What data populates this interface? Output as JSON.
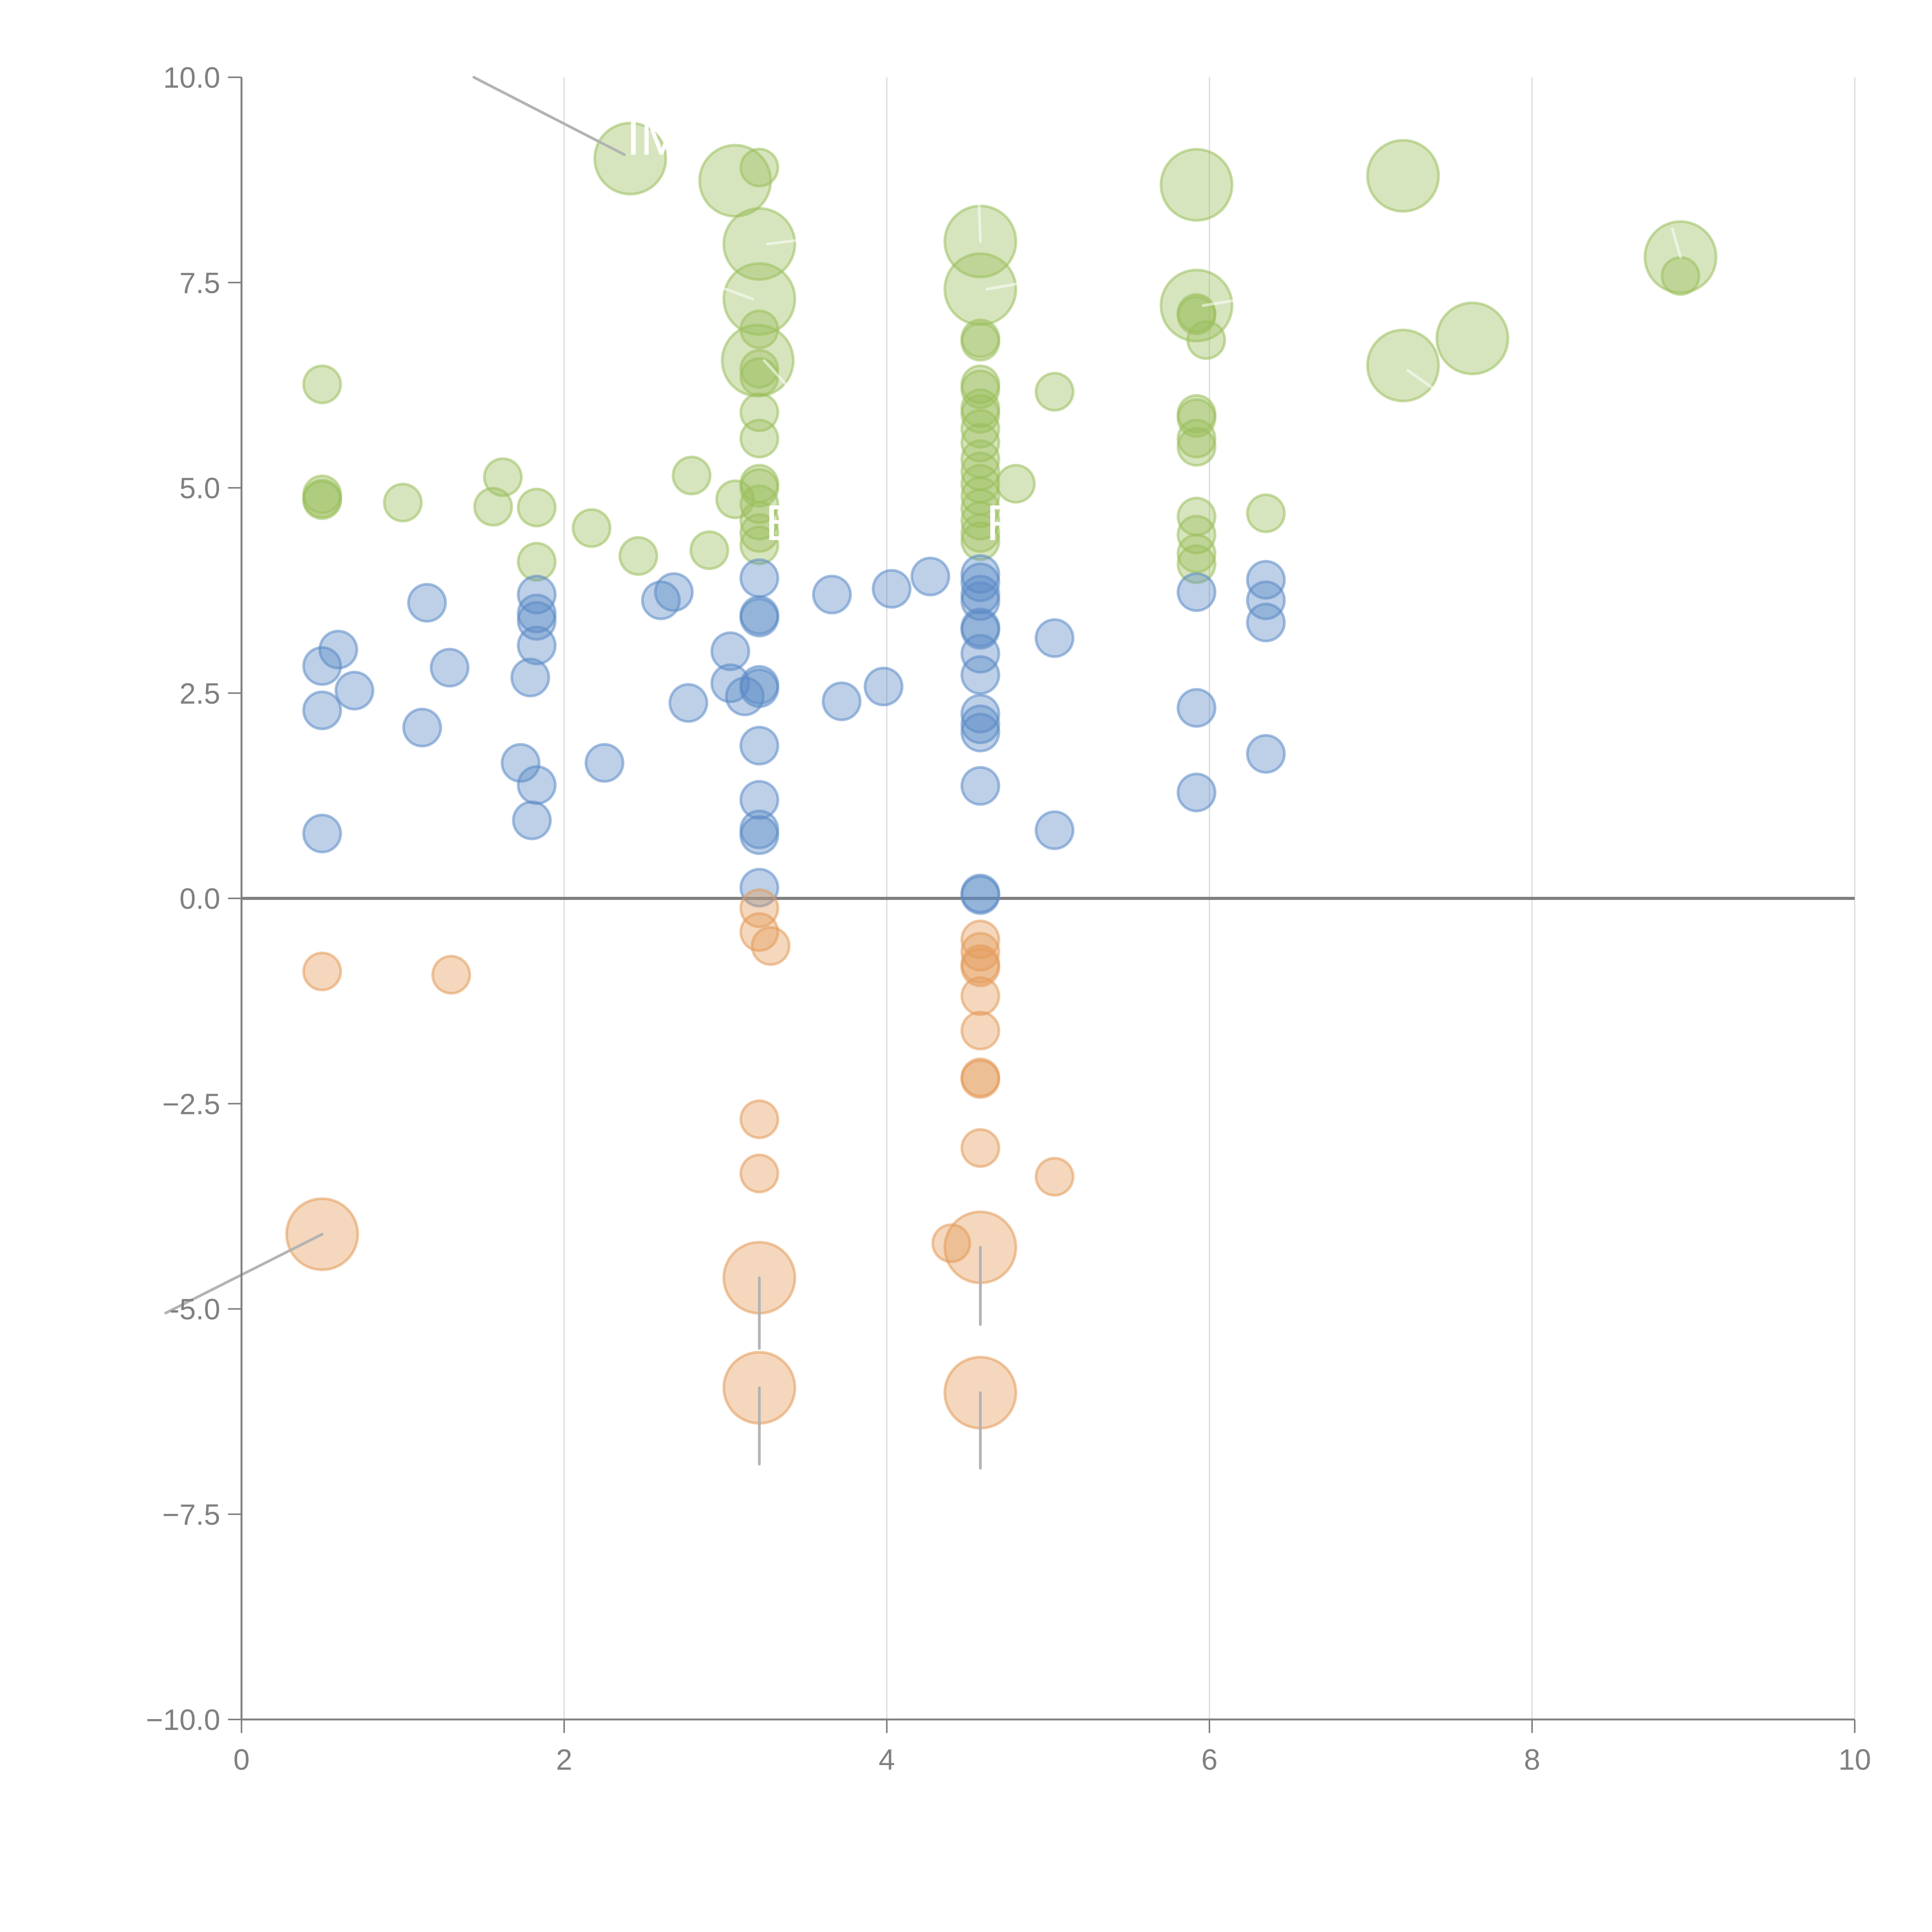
{
  "chart_data": {
    "type": "scatter",
    "subtype": "bubble",
    "title": "",
    "xlabel": "",
    "ylabel": "",
    "xlim": [
      0,
      10
    ],
    "ylim": [
      -10,
      10
    ],
    "xticks": [
      "0",
      "2",
      "4",
      "6",
      "8",
      "10"
    ],
    "yticks": [
      "10.0",
      "7.5",
      "5.0",
      "2.5",
      "0.0",
      "−2.5",
      "-5.0",
      "−7.5",
      "−10.0"
    ],
    "grid": "vertical",
    "legend": "none",
    "colors": {
      "green": "#9bbf5d",
      "blue": "#5b8ac6",
      "orange": "#e39a5a",
      "axis": "#808080",
      "grid": "#d9d9d9",
      "leader": "#b3b3b3"
    },
    "series": [
      {
        "name": "green",
        "points": [
          {
            "x": 2.41,
            "y": 9.01,
            "s": 2
          },
          {
            "x": 3.06,
            "y": 8.74,
            "s": 2
          },
          {
            "x": 3.21,
            "y": 8.9,
            "s": 1
          },
          {
            "x": 3.21,
            "y": 7.97,
            "s": 2
          },
          {
            "x": 3.21,
            "y": 7.3,
            "s": 2
          },
          {
            "x": 3.21,
            "y": 6.93,
            "s": 1
          },
          {
            "x": 3.2,
            "y": 6.55,
            "s": 2
          },
          {
            "x": 3.21,
            "y": 6.45,
            "s": 1
          },
          {
            "x": 3.21,
            "y": 6.35,
            "s": 1
          },
          {
            "x": 3.21,
            "y": 5.92,
            "s": 1
          },
          {
            "x": 3.21,
            "y": 5.6,
            "s": 1
          },
          {
            "x": 3.21,
            "y": 5.05,
            "s": 1
          },
          {
            "x": 3.21,
            "y": 5.0,
            "s": 1
          },
          {
            "x": 3.21,
            "y": 4.8,
            "s": 1
          },
          {
            "x": 3.21,
            "y": 4.6,
            "s": 1
          },
          {
            "x": 3.21,
            "y": 4.45,
            "s": 1
          },
          {
            "x": 3.21,
            "y": 4.3,
            "s": 1
          },
          {
            "x": 3.06,
            "y": 4.86,
            "s": 1
          },
          {
            "x": 2.79,
            "y": 5.15,
            "s": 1
          },
          {
            "x": 2.9,
            "y": 4.24,
            "s": 1
          },
          {
            "x": 2.46,
            "y": 4.17,
            "s": 1
          },
          {
            "x": 2.17,
            "y": 4.51,
            "s": 1
          },
          {
            "x": 1.83,
            "y": 4.76,
            "s": 1
          },
          {
            "x": 1.83,
            "y": 4.1,
            "s": 1
          },
          {
            "x": 1.62,
            "y": 5.13,
            "s": 1
          },
          {
            "x": 1.56,
            "y": 4.77,
            "s": 1
          },
          {
            "x": 1.0,
            "y": 4.82,
            "s": 1
          },
          {
            "x": 0.5,
            "y": 6.26,
            "s": 1
          },
          {
            "x": 0.5,
            "y": 4.92,
            "s": 1
          },
          {
            "x": 0.5,
            "y": 4.87,
            "s": 1
          },
          {
            "x": 0.5,
            "y": 4.85,
            "s": 1
          },
          {
            "x": 4.58,
            "y": 8.0,
            "s": 2
          },
          {
            "x": 4.58,
            "y": 7.42,
            "s": 2
          },
          {
            "x": 4.58,
            "y": 6.82,
            "s": 1
          },
          {
            "x": 4.58,
            "y": 6.78,
            "s": 1
          },
          {
            "x": 4.58,
            "y": 6.26,
            "s": 1
          },
          {
            "x": 4.58,
            "y": 6.2,
            "s": 1
          },
          {
            "x": 4.58,
            "y": 5.97,
            "s": 1
          },
          {
            "x": 4.58,
            "y": 5.9,
            "s": 1
          },
          {
            "x": 4.58,
            "y": 5.72,
            "s": 1
          },
          {
            "x": 4.58,
            "y": 5.55,
            "s": 1
          },
          {
            "x": 4.58,
            "y": 5.35,
            "s": 1
          },
          {
            "x": 4.58,
            "y": 5.2,
            "s": 1
          },
          {
            "x": 4.58,
            "y": 5.05,
            "s": 1
          },
          {
            "x": 4.58,
            "y": 4.9,
            "s": 1
          },
          {
            "x": 4.58,
            "y": 4.75,
            "s": 1
          },
          {
            "x": 4.58,
            "y": 4.6,
            "s": 1
          },
          {
            "x": 4.58,
            "y": 4.45,
            "s": 1
          },
          {
            "x": 4.58,
            "y": 4.35,
            "s": 1
          },
          {
            "x": 4.8,
            "y": 5.05,
            "s": 1
          },
          {
            "x": 5.04,
            "y": 6.17,
            "s": 1
          },
          {
            "x": 5.92,
            "y": 8.69,
            "s": 2
          },
          {
            "x": 5.92,
            "y": 7.22,
            "s": 2
          },
          {
            "x": 5.92,
            "y": 7.13,
            "s": 1
          },
          {
            "x": 5.92,
            "y": 7.1,
            "s": 1
          },
          {
            "x": 5.98,
            "y": 6.8,
            "s": 1
          },
          {
            "x": 5.92,
            "y": 5.9,
            "s": 1
          },
          {
            "x": 5.92,
            "y": 5.85,
            "s": 1
          },
          {
            "x": 5.92,
            "y": 5.6,
            "s": 1
          },
          {
            "x": 5.92,
            "y": 5.5,
            "s": 1
          },
          {
            "x": 5.92,
            "y": 4.65,
            "s": 1
          },
          {
            "x": 5.92,
            "y": 4.43,
            "s": 1
          },
          {
            "x": 5.92,
            "y": 4.2,
            "s": 1
          },
          {
            "x": 5.92,
            "y": 4.07,
            "s": 1
          },
          {
            "x": 6.35,
            "y": 4.69,
            "s": 1
          },
          {
            "x": 7.2,
            "y": 8.8,
            "s": 2
          },
          {
            "x": 7.63,
            "y": 6.82,
            "s": 2
          },
          {
            "x": 7.2,
            "y": 6.49,
            "s": 2
          },
          {
            "x": 8.92,
            "y": 7.81,
            "s": 2
          },
          {
            "x": 8.92,
            "y": 7.58,
            "s": 1
          }
        ]
      },
      {
        "name": "blue",
        "points": [
          {
            "x": 0.5,
            "y": 2.83,
            "s": 1
          },
          {
            "x": 0.6,
            "y": 3.03,
            "s": 1
          },
          {
            "x": 0.5,
            "y": 2.29,
            "s": 1
          },
          {
            "x": 0.7,
            "y": 2.53,
            "s": 1
          },
          {
            "x": 0.5,
            "y": 0.79,
            "s": 1
          },
          {
            "x": 1.15,
            "y": 3.6,
            "s": 1
          },
          {
            "x": 1.29,
            "y": 2.81,
            "s": 1
          },
          {
            "x": 1.12,
            "y": 2.08,
            "s": 1
          },
          {
            "x": 1.73,
            "y": 1.65,
            "s": 1
          },
          {
            "x": 1.83,
            "y": 1.38,
            "s": 1
          },
          {
            "x": 1.8,
            "y": 0.95,
            "s": 1
          },
          {
            "x": 1.83,
            "y": 3.7,
            "s": 1
          },
          {
            "x": 1.83,
            "y": 3.47,
            "s": 1
          },
          {
            "x": 1.83,
            "y": 3.38,
            "s": 1
          },
          {
            "x": 1.83,
            "y": 3.08,
            "s": 1
          },
          {
            "x": 1.79,
            "y": 2.69,
            "s": 1
          },
          {
            "x": 2.25,
            "y": 1.65,
            "s": 1
          },
          {
            "x": 2.6,
            "y": 3.63,
            "s": 1
          },
          {
            "x": 2.68,
            "y": 3.73,
            "s": 1
          },
          {
            "x": 2.77,
            "y": 2.38,
            "s": 1
          },
          {
            "x": 3.03,
            "y": 3.01,
            "s": 1
          },
          {
            "x": 3.03,
            "y": 2.62,
            "s": 1
          },
          {
            "x": 3.12,
            "y": 2.46,
            "s": 1
          },
          {
            "x": 3.21,
            "y": 3.9,
            "s": 1
          },
          {
            "x": 3.21,
            "y": 3.45,
            "s": 1
          },
          {
            "x": 3.21,
            "y": 3.42,
            "s": 1
          },
          {
            "x": 3.21,
            "y": 2.6,
            "s": 1
          },
          {
            "x": 3.21,
            "y": 2.56,
            "s": 1
          },
          {
            "x": 3.21,
            "y": 1.86,
            "s": 1
          },
          {
            "x": 3.21,
            "y": 1.2,
            "s": 1
          },
          {
            "x": 3.21,
            "y": 0.84,
            "s": 1
          },
          {
            "x": 3.21,
            "y": 0.77,
            "s": 1
          },
          {
            "x": 3.21,
            "y": 0.13,
            "s": 1
          },
          {
            "x": 3.66,
            "y": 3.7,
            "s": 1
          },
          {
            "x": 3.72,
            "y": 2.4,
            "s": 1
          },
          {
            "x": 4.03,
            "y": 3.77,
            "s": 1
          },
          {
            "x": 3.98,
            "y": 2.58,
            "s": 1
          },
          {
            "x": 4.27,
            "y": 3.92,
            "s": 1
          },
          {
            "x": 4.58,
            "y": 3.95,
            "s": 1
          },
          {
            "x": 4.58,
            "y": 3.85,
            "s": 1
          },
          {
            "x": 4.58,
            "y": 3.7,
            "s": 1
          },
          {
            "x": 4.58,
            "y": 3.62,
            "s": 1
          },
          {
            "x": 4.58,
            "y": 3.3,
            "s": 1
          },
          {
            "x": 4.58,
            "y": 3.27,
            "s": 1
          },
          {
            "x": 4.58,
            "y": 2.98,
            "s": 1
          },
          {
            "x": 4.58,
            "y": 2.72,
            "s": 1
          },
          {
            "x": 4.58,
            "y": 2.25,
            "s": 1
          },
          {
            "x": 4.58,
            "y": 2.12,
            "s": 1
          },
          {
            "x": 4.58,
            "y": 2.02,
            "s": 1
          },
          {
            "x": 4.58,
            "y": 1.37,
            "s": 1
          },
          {
            "x": 4.58,
            "y": 0.06,
            "s": 1
          },
          {
            "x": 4.58,
            "y": 0.04,
            "s": 1
          },
          {
            "x": 5.04,
            "y": 3.17,
            "s": 1
          },
          {
            "x": 5.04,
            "y": 0.83,
            "s": 1
          },
          {
            "x": 5.92,
            "y": 3.73,
            "s": 1
          },
          {
            "x": 5.92,
            "y": 2.32,
            "s": 1
          },
          {
            "x": 5.92,
            "y": 1.29,
            "s": 1
          },
          {
            "x": 6.35,
            "y": 3.88,
            "s": 1
          },
          {
            "x": 6.35,
            "y": 3.63,
            "s": 1
          },
          {
            "x": 6.35,
            "y": 3.36,
            "s": 1
          },
          {
            "x": 6.35,
            "y": 1.76,
            "s": 1
          }
        ]
      },
      {
        "name": "orange",
        "points": [
          {
            "x": 0.5,
            "y": -0.89,
            "s": 1
          },
          {
            "x": 1.3,
            "y": -0.93,
            "s": 1
          },
          {
            "x": 0.5,
            "y": -4.09,
            "s": 2
          },
          {
            "x": 3.21,
            "y": -0.12,
            "s": 1
          },
          {
            "x": 3.21,
            "y": -0.41,
            "s": 1
          },
          {
            "x": 3.28,
            "y": -0.58,
            "s": 1
          },
          {
            "x": 3.21,
            "y": -2.69,
            "s": 1
          },
          {
            "x": 3.21,
            "y": -3.35,
            "s": 1
          },
          {
            "x": 3.21,
            "y": -4.62,
            "s": 2
          },
          {
            "x": 3.21,
            "y": -5.96,
            "s": 2
          },
          {
            "x": 4.58,
            "y": -0.5,
            "s": 1
          },
          {
            "x": 4.58,
            "y": -0.65,
            "s": 1
          },
          {
            "x": 4.58,
            "y": -0.8,
            "s": 1
          },
          {
            "x": 4.58,
            "y": -0.84,
            "s": 1
          },
          {
            "x": 4.58,
            "y": -1.19,
            "s": 1
          },
          {
            "x": 4.58,
            "y": -1.61,
            "s": 1
          },
          {
            "x": 4.58,
            "y": -2.18,
            "s": 1
          },
          {
            "x": 4.58,
            "y": -2.2,
            "s": 1
          },
          {
            "x": 4.58,
            "y": -3.04,
            "s": 1
          },
          {
            "x": 4.4,
            "y": -4.2,
            "s": 1
          },
          {
            "x": 4.58,
            "y": -4.25,
            "s": 2
          },
          {
            "x": 4.58,
            "y": -6.02,
            "s": 2
          },
          {
            "x": 5.04,
            "y": -3.39,
            "s": 1
          }
        ]
      }
    ],
    "annotations": [
      {
        "text": "IM",
        "x": 2.41,
        "y": 9.01,
        "lx": 1.44,
        "ly": 10.0,
        "leader": "gray"
      },
      {
        "text": "B",
        "x": 3.21,
        "y": 4.6
      },
      {
        "text": "R",
        "x": 4.58,
        "y": 4.6
      }
    ],
    "leaders": [
      {
        "x1": 0.5,
        "y1": -4.09,
        "x2": -0.47,
        "y2": -5.05,
        "tone": "gray"
      },
      {
        "x1": 3.21,
        "y1": -4.62,
        "x2": 3.21,
        "y2": -5.48,
        "tone": "gray"
      },
      {
        "x1": 3.21,
        "y1": -5.96,
        "x2": 3.21,
        "y2": -6.89,
        "tone": "gray"
      },
      {
        "x1": 4.58,
        "y1": -4.25,
        "x2": 4.58,
        "y2": -5.19,
        "tone": "gray"
      },
      {
        "x1": 4.58,
        "y1": -6.02,
        "x2": 4.58,
        "y2": -6.94,
        "tone": "gray"
      },
      {
        "x1": 3.26,
        "y1": 7.97,
        "x2": 3.6,
        "y2": 8.05,
        "tone": "white"
      },
      {
        "x1": 3.17,
        "y1": 7.3,
        "x2": 2.96,
        "y2": 7.45,
        "tone": "white"
      },
      {
        "x1": 3.24,
        "y1": 6.55,
        "x2": 3.38,
        "y2": 6.25,
        "tone": "white"
      },
      {
        "x1": 4.58,
        "y1": 8.0,
        "x2": 4.57,
        "y2": 8.55,
        "tone": "white"
      },
      {
        "x1": 4.62,
        "y1": 7.42,
        "x2": 4.8,
        "y2": 7.48,
        "tone": "white"
      },
      {
        "x1": 5.96,
        "y1": 7.22,
        "x2": 6.15,
        "y2": 7.28,
        "tone": "white"
      },
      {
        "x1": 7.23,
        "y1": 6.43,
        "x2": 7.38,
        "y2": 6.22,
        "tone": "white"
      },
      {
        "x1": 8.92,
        "y1": 7.81,
        "x2": 8.87,
        "y2": 8.15,
        "tone": "white"
      }
    ]
  }
}
